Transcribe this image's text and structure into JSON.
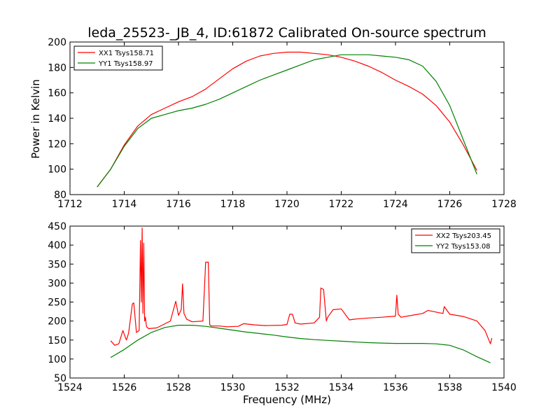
{
  "figure": {
    "title": "leda_25523-_JB_4, ID:61872 Calibrated On-source spectrum",
    "ylabel": "Power in Kelvin",
    "xlabel": "Frequency (MHz)"
  },
  "chart_data": [
    {
      "type": "line",
      "title": "leda_25523-_JB_4, ID:61872 Calibrated On-source spectrum",
      "xlabel": "",
      "ylabel": "Power in Kelvin",
      "xlim": [
        1712,
        1728
      ],
      "ylim": [
        80,
        200
      ],
      "xticks": [
        1712,
        1714,
        1716,
        1718,
        1720,
        1722,
        1724,
        1726,
        1728
      ],
      "yticks": [
        80,
        100,
        120,
        140,
        160,
        180,
        200
      ],
      "grid": false,
      "legend_position": "top-left",
      "series": [
        {
          "name": "XX1 Tsys158.71",
          "color": "#ff0000",
          "x": [
            1713.0,
            1713.5,
            1714.0,
            1714.5,
            1715.0,
            1715.5,
            1716.0,
            1716.5,
            1717.0,
            1717.5,
            1718.0,
            1718.5,
            1719.0,
            1719.5,
            1720.0,
            1720.5,
            1721.0,
            1721.5,
            1722.0,
            1722.5,
            1723.0,
            1723.5,
            1724.0,
            1724.5,
            1725.0,
            1725.5,
            1726.0,
            1726.5,
            1727.0
          ],
          "y": [
            86,
            100,
            119,
            134,
            143,
            148,
            153,
            157,
            163,
            171,
            179,
            185,
            189,
            191,
            192,
            192,
            191,
            190,
            188,
            185,
            181,
            176,
            170,
            165,
            159,
            150,
            137,
            119,
            99
          ]
        },
        {
          "name": "YY1 Tsys158.97",
          "color": "#008000",
          "x": [
            1713.0,
            1713.5,
            1714.0,
            1714.5,
            1715.0,
            1715.5,
            1716.0,
            1716.5,
            1717.0,
            1717.5,
            1718.0,
            1718.5,
            1719.0,
            1719.5,
            1720.0,
            1720.5,
            1721.0,
            1721.5,
            1722.0,
            1722.5,
            1723.0,
            1723.5,
            1724.0,
            1724.5,
            1725.0,
            1725.5,
            1726.0,
            1726.5,
            1727.0
          ],
          "y": [
            86,
            100,
            118,
            132,
            140,
            143,
            146,
            148,
            151,
            155,
            160,
            165,
            170,
            174,
            178,
            182,
            186,
            188,
            190,
            190,
            190,
            189,
            188,
            186,
            181,
            169,
            150,
            123,
            96
          ]
        }
      ]
    },
    {
      "type": "line",
      "title": "",
      "xlabel": "Frequency (MHz)",
      "ylabel": "",
      "xlim": [
        1524,
        1540
      ],
      "ylim": [
        50,
        450
      ],
      "xticks": [
        1524,
        1526,
        1528,
        1530,
        1532,
        1534,
        1536,
        1538,
        1540
      ],
      "yticks": [
        50,
        100,
        150,
        200,
        250,
        300,
        350,
        400,
        450
      ],
      "grid": false,
      "legend_position": "top-right",
      "series": [
        {
          "name": "XX2 Tsys203.45",
          "color": "#ff0000",
          "x": [
            1525.5,
            1525.65,
            1525.8,
            1525.95,
            1526.0,
            1526.08,
            1526.16,
            1526.3,
            1526.35,
            1526.45,
            1526.55,
            1526.6,
            1526.63,
            1526.66,
            1526.69,
            1526.72,
            1526.75,
            1526.78,
            1526.82,
            1526.9,
            1527.2,
            1527.7,
            1527.9,
            1528.0,
            1528.1,
            1528.15,
            1528.2,
            1528.3,
            1528.5,
            1528.9,
            1529.0,
            1529.05,
            1529.1,
            1529.15,
            1529.2,
            1529.5,
            1529.8,
            1530.2,
            1530.4,
            1530.8,
            1531.2,
            1531.8,
            1532.0,
            1532.1,
            1532.2,
            1532.3,
            1532.5,
            1533.0,
            1533.2,
            1533.25,
            1533.35,
            1533.45,
            1533.5,
            1533.7,
            1534.0,
            1534.3,
            1534.5,
            1535.0,
            1535.5,
            1536.0,
            1536.05,
            1536.1,
            1536.2,
            1536.6,
            1537.0,
            1537.2,
            1537.6,
            1537.75,
            1537.8,
            1538.0,
            1538.5,
            1539.0,
            1539.3,
            1539.5,
            1539.55
          ],
          "y": [
            148,
            136,
            140,
            175,
            165,
            150,
            168,
            245,
            248,
            170,
            175,
            412,
            250,
            445,
            220,
            405,
            200,
            210,
            185,
            180,
            182,
            200,
            252,
            215,
            230,
            298,
            220,
            205,
            198,
            200,
            355,
            355,
            355,
            190,
            187,
            187,
            185,
            186,
            193,
            190,
            188,
            189,
            191,
            218,
            218,
            195,
            192,
            195,
            210,
            287,
            283,
            200,
            210,
            230,
            232,
            203,
            205,
            208,
            210,
            213,
            268,
            218,
            210,
            215,
            220,
            228,
            222,
            220,
            238,
            218,
            212,
            200,
            175,
            140,
            155
          ]
        },
        {
          "name": "YY2 Tsys153.08",
          "color": "#008000",
          "x": [
            1525.5,
            1526.0,
            1526.5,
            1527.0,
            1527.5,
            1528.0,
            1528.5,
            1529.0,
            1529.5,
            1530.0,
            1530.5,
            1531.0,
            1531.5,
            1532.0,
            1532.5,
            1533.0,
            1533.5,
            1534.0,
            1534.5,
            1535.0,
            1535.5,
            1536.0,
            1536.5,
            1537.0,
            1537.5,
            1538.0,
            1538.5,
            1539.0,
            1539.5
          ],
          "y": [
            104,
            125,
            150,
            170,
            183,
            189,
            189,
            186,
            181,
            176,
            171,
            167,
            163,
            158,
            154,
            151,
            149,
            147,
            145,
            143,
            142,
            141,
            141,
            141,
            140,
            136,
            124,
            106,
            90
          ]
        }
      ]
    }
  ]
}
